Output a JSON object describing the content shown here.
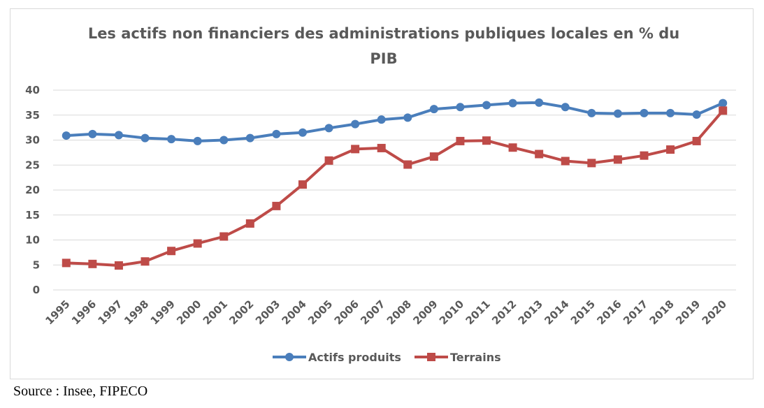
{
  "chart_data": {
    "type": "line",
    "title_lines": [
      "Les actifs non financiers des administrations publiques locales en % du",
      "PIB"
    ],
    "xlabel": "",
    "ylabel": "",
    "ylim": [
      0,
      40
    ],
    "yticks": [
      "0",
      "5",
      "10",
      "15",
      "20",
      "25",
      "30",
      "35",
      "40"
    ],
    "grid": true,
    "legend_position": "bottom",
    "x": [
      "1995",
      "1996",
      "1997",
      "1998",
      "1999",
      "2000",
      "2001",
      "2002",
      "2003",
      "2004",
      "2005",
      "2006",
      "2007",
      "2008",
      "2009",
      "2010",
      "2011",
      "2012",
      "2013",
      "2014",
      "2015",
      "2016",
      "2017",
      "2018",
      "2019",
      "2020"
    ],
    "series": [
      {
        "name": "Actifs produits",
        "color": "#4a7ebb",
        "marker": "circle",
        "values": [
          30.9,
          31.2,
          31.0,
          30.4,
          30.2,
          29.8,
          30.0,
          30.4,
          31.2,
          31.5,
          32.4,
          33.2,
          34.1,
          34.5,
          36.2,
          36.6,
          37.0,
          37.4,
          37.5,
          36.6,
          35.4,
          35.3,
          35.4,
          35.4,
          35.1,
          37.4
        ]
      },
      {
        "name": "Terrains",
        "color": "#be4b48",
        "marker": "square",
        "values": [
          5.4,
          5.2,
          4.9,
          5.7,
          7.8,
          9.3,
          10.7,
          13.3,
          16.8,
          21.1,
          25.9,
          28.2,
          28.4,
          25.1,
          26.7,
          29.8,
          29.9,
          28.5,
          27.2,
          25.8,
          25.4,
          26.1,
          26.9,
          28.1,
          29.8,
          35.9
        ]
      }
    ]
  },
  "source": "Source : Insee, FIPECO"
}
